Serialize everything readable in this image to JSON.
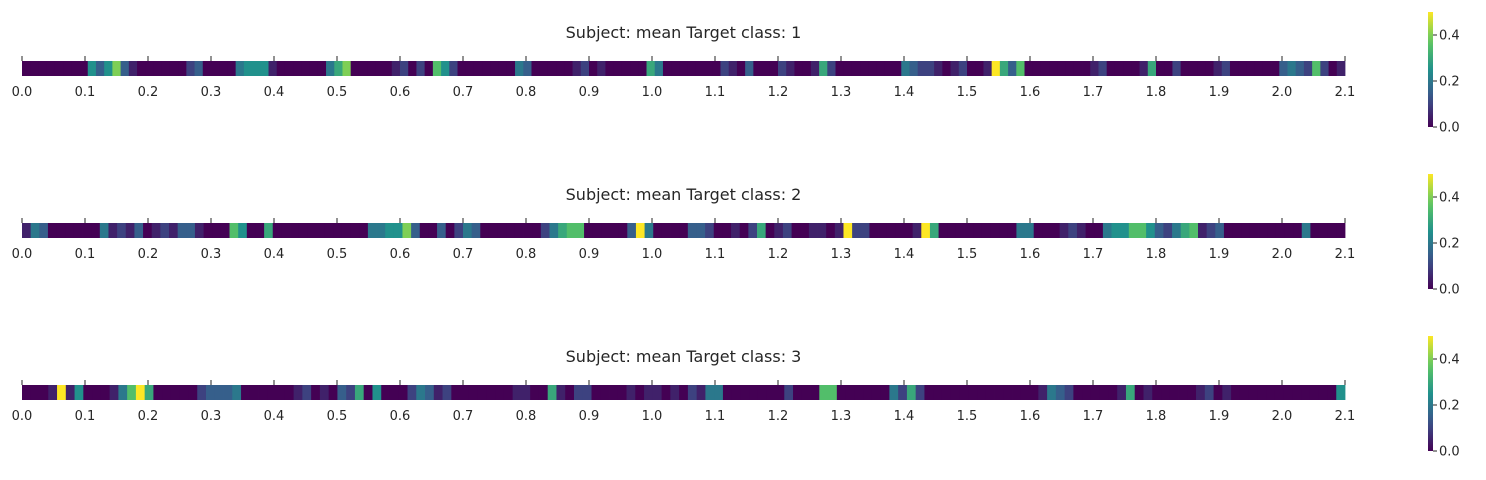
{
  "chart_data": [
    {
      "type": "heatmap",
      "title": "Subject: mean Target class: 1",
      "xlim": [
        0.0,
        2.1
      ],
      "x_ticks": [
        "0.0",
        "0.1",
        "0.2",
        "0.3",
        "0.4",
        "0.5",
        "0.6",
        "0.7",
        "0.8",
        "0.9",
        "1.0",
        "1.1",
        "1.2",
        "1.3",
        "1.4",
        "1.5",
        "1.6",
        "1.7",
        "1.8",
        "1.9",
        "2.0",
        "2.1"
      ],
      "colorbar": {
        "range": [
          0.0,
          0.5
        ],
        "ticks": [
          "0.0",
          "0.2",
          "0.4"
        ],
        "colormap": "viridis"
      },
      "values": [
        0,
        0,
        0,
        0,
        0,
        0,
        0,
        0,
        0.25,
        0.15,
        0.25,
        0.4,
        0.15,
        0.05,
        0,
        0,
        0,
        0,
        0,
        0,
        0.1,
        0.15,
        0,
        0,
        0,
        0,
        0.2,
        0.25,
        0.25,
        0.25,
        0.05,
        0,
        0,
        0,
        0,
        0,
        0,
        0.2,
        0.3,
        0.4,
        0,
        0,
        0,
        0,
        0,
        0.05,
        0.1,
        0,
        0.1,
        0,
        0.35,
        0.25,
        0.1,
        0,
        0,
        0,
        0,
        0,
        0,
        0,
        0.2,
        0.15,
        0,
        0,
        0,
        0,
        0,
        0.05,
        0.1,
        0,
        0.05,
        0,
        0,
        0,
        0,
        0,
        0.3,
        0.2,
        0,
        0,
        0,
        0,
        0,
        0,
        0,
        0.1,
        0.05,
        0,
        0.15,
        0,
        0,
        0,
        0.1,
        0.05,
        0,
        0,
        0.05,
        0.3,
        0.1,
        0,
        0,
        0,
        0,
        0,
        0,
        0,
        0,
        0.2,
        0.15,
        0.1,
        0.1,
        0.05,
        0,
        0.05,
        0.1,
        0,
        0,
        0.05,
        0.5,
        0.3,
        0.15,
        0.35,
        0,
        0,
        0,
        0,
        0,
        0,
        0,
        0,
        0.05,
        0.1,
        0,
        0,
        0,
        0,
        0.05,
        0.3,
        0,
        0,
        0.1,
        0,
        0,
        0,
        0,
        0.05,
        0.1,
        0,
        0,
        0,
        0,
        0,
        0,
        0.15,
        0.2,
        0.15,
        0.1,
        0.35,
        0.1,
        0,
        0.05
      ]
    },
    {
      "type": "heatmap",
      "title": "Subject: mean Target class: 2",
      "xlim": [
        0.0,
        2.1
      ],
      "x_ticks": [
        "0.0",
        "0.1",
        "0.2",
        "0.3",
        "0.4",
        "0.5",
        "0.6",
        "0.7",
        "0.8",
        "0.9",
        "1.0",
        "1.1",
        "1.2",
        "1.3",
        "1.4",
        "1.5",
        "1.6",
        "1.7",
        "1.8",
        "1.9",
        "2.0",
        "2.1"
      ],
      "colorbar": {
        "range": [
          0.0,
          0.5
        ],
        "ticks": [
          "0.0",
          "0.2",
          "0.4"
        ],
        "colormap": "viridis"
      },
      "values": [
        0.05,
        0.2,
        0.15,
        0,
        0,
        0,
        0,
        0,
        0,
        0.2,
        0.05,
        0.1,
        0.05,
        0.15,
        0,
        0.05,
        0.1,
        0.05,
        0.15,
        0.15,
        0.05,
        0,
        0,
        0,
        0.35,
        0.25,
        0,
        0,
        0.3,
        0,
        0,
        0,
        0,
        0,
        0,
        0,
        0,
        0,
        0,
        0,
        0.2,
        0.2,
        0.25,
        0.25,
        0.4,
        0.15,
        0,
        0,
        0.15,
        0,
        0.1,
        0.2,
        0.15,
        0,
        0,
        0,
        0,
        0,
        0,
        0,
        0.1,
        0.2,
        0.3,
        0.35,
        0.35,
        0,
        0,
        0,
        0,
        0,
        0.15,
        0.5,
        0.2,
        0,
        0,
        0,
        0,
        0.15,
        0.15,
        0.1,
        0,
        0,
        0.05,
        0,
        0.1,
        0.3,
        0,
        0.05,
        0.1,
        0,
        0,
        0.05,
        0.05,
        0,
        0.05,
        0.5,
        0.1,
        0.1,
        0,
        0,
        0,
        0,
        0,
        0.05,
        0.5,
        0.3,
        0,
        0,
        0,
        0,
        0,
        0,
        0,
        0,
        0,
        0.2,
        0.2,
        0,
        0,
        0,
        0.05,
        0.1,
        0.05,
        0,
        0,
        0.2,
        0.25,
        0.25,
        0.35,
        0.35,
        0.25,
        0.15,
        0.1,
        0.2,
        0.3,
        0.35,
        0.05,
        0.1,
        0.15,
        0,
        0,
        0,
        0,
        0,
        0,
        0,
        0,
        0,
        0.2,
        0,
        0,
        0,
        0
      ]
    },
    {
      "type": "heatmap",
      "title": "Subject: mean Target class: 3",
      "xlim": [
        0.0,
        2.1
      ],
      "x_ticks": [
        "0.0",
        "0.1",
        "0.2",
        "0.3",
        "0.4",
        "0.5",
        "0.6",
        "0.7",
        "0.8",
        "0.9",
        "1.0",
        "1.1",
        "1.2",
        "1.3",
        "1.4",
        "1.5",
        "1.6",
        "1.7",
        "1.8",
        "1.9",
        "2.0",
        "2.1"
      ],
      "colorbar": {
        "range": [
          0.0,
          0.5
        ],
        "ticks": [
          "0.0",
          "0.2",
          "0.4"
        ],
        "colormap": "viridis"
      },
      "values": [
        0,
        0,
        0,
        0.05,
        0.5,
        0.05,
        0.25,
        0,
        0,
        0,
        0.05,
        0.2,
        0.35,
        0.5,
        0.3,
        0,
        0,
        0,
        0,
        0,
        0.1,
        0.15,
        0.15,
        0.15,
        0.2,
        0,
        0,
        0,
        0,
        0,
        0,
        0.05,
        0.1,
        0,
        0.05,
        0,
        0.15,
        0.1,
        0.3,
        0,
        0.25,
        0,
        0,
        0,
        0.1,
        0.2,
        0.15,
        0.05,
        0.1,
        0,
        0,
        0,
        0,
        0,
        0,
        0,
        0.05,
        0.05,
        0,
        0,
        0.3,
        0.05,
        0,
        0.1,
        0.1,
        0,
        0,
        0,
        0,
        0.05,
        0,
        0.05,
        0.05,
        0,
        0.05,
        0,
        0.1,
        0.05,
        0.2,
        0.2,
        0,
        0,
        0,
        0,
        0,
        0,
        0,
        0.1,
        0,
        0,
        0,
        0.35,
        0.35,
        0,
        0,
        0,
        0,
        0,
        0,
        0.2,
        0.1,
        0.3,
        0.1,
        0,
        0,
        0,
        0,
        0,
        0,
        0,
        0,
        0,
        0,
        0,
        0,
        0,
        0.05,
        0.2,
        0.15,
        0.1,
        0,
        0,
        0,
        0,
        0,
        0.05,
        0.3,
        0,
        0.05,
        0,
        0,
        0,
        0,
        0,
        0.05,
        0.1,
        0,
        0.05,
        0,
        0,
        0,
        0,
        0,
        0,
        0,
        0,
        0,
        0,
        0,
        0,
        0.25
      ]
    }
  ]
}
